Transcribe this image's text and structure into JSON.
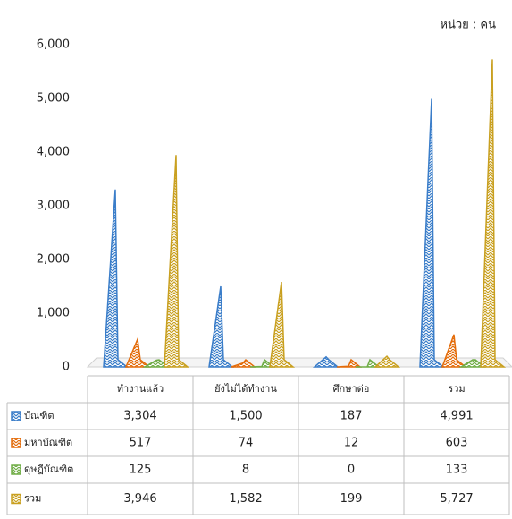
{
  "chart_data": {
    "type": "pyramid",
    "annotation": "หน่วย : คน",
    "categories": [
      "ทำงานแล้ว",
      "ยังไม่ได้ทำงาน",
      "ศึกษาต่อ",
      "รวม"
    ],
    "series": [
      {
        "name": "บัณฑิต",
        "color": "#3a7dc9",
        "values": [
          3304,
          1500,
          187,
          4991
        ],
        "value_labels": [
          "3,304",
          "1,500",
          "187",
          "4,991"
        ]
      },
      {
        "name": "มหาบัณฑิต",
        "color": "#e46c0a",
        "values": [
          517,
          74,
          12,
          603
        ],
        "value_labels": [
          "517",
          "74",
          "12",
          "603"
        ]
      },
      {
        "name": "ดุษฎีบัณฑิต",
        "color": "#70ad47",
        "values": [
          125,
          8,
          0,
          133
        ],
        "value_labels": [
          "125",
          "8",
          "0",
          "133"
        ]
      },
      {
        "name": "รวม",
        "color": "#c9a020",
        "values": [
          3946,
          1582,
          199,
          5727
        ],
        "value_labels": [
          "3,946",
          "1,582",
          "199",
          "5,727"
        ]
      }
    ],
    "ylim": [
      0,
      6000
    ],
    "yticks": [
      0,
      {
        "value": 1000,
        "label": "1,000"
      },
      {
        "value": 2000,
        "label": "2,000"
      },
      {
        "value": 3000,
        "label": "3,000"
      },
      {
        "value": 4000,
        "label": "4,000"
      },
      {
        "value": 5000,
        "label": "5,000"
      },
      {
        "value": 6000,
        "label": "6,000"
      }
    ]
  }
}
